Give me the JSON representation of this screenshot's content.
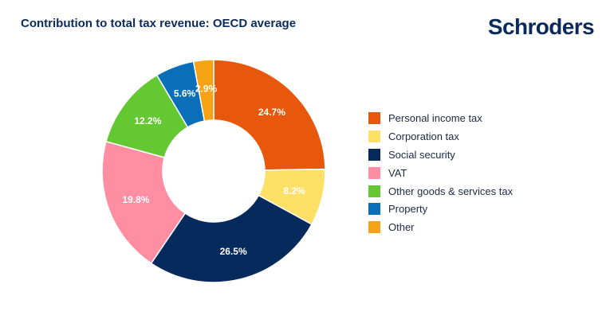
{
  "brand": {
    "name": "Schroders"
  },
  "chart_data": {
    "type": "pie",
    "title": "Contribution to total tax revenue: OECD average",
    "unit": "%",
    "start": "12 o'clock",
    "direction": "clockwise",
    "legend_position": "right",
    "labels": [
      "Personal income tax",
      "Corporation tax",
      "Social security",
      "VAT",
      "Other goods & services tax",
      "Property",
      "Other"
    ],
    "values": [
      24.7,
      8.2,
      26.5,
      19.8,
      12.2,
      5.6,
      2.9
    ],
    "value_labels": [
      "24.7%",
      "8.2%",
      "26.5%",
      "19.8%",
      "12.2%",
      "5.6%",
      "2.9%"
    ],
    "colors": [
      "#e8580c",
      "#ffe066",
      "#072a5c",
      "#ff8ea3",
      "#64c832",
      "#0a6fb8",
      "#f5a314"
    ]
  }
}
